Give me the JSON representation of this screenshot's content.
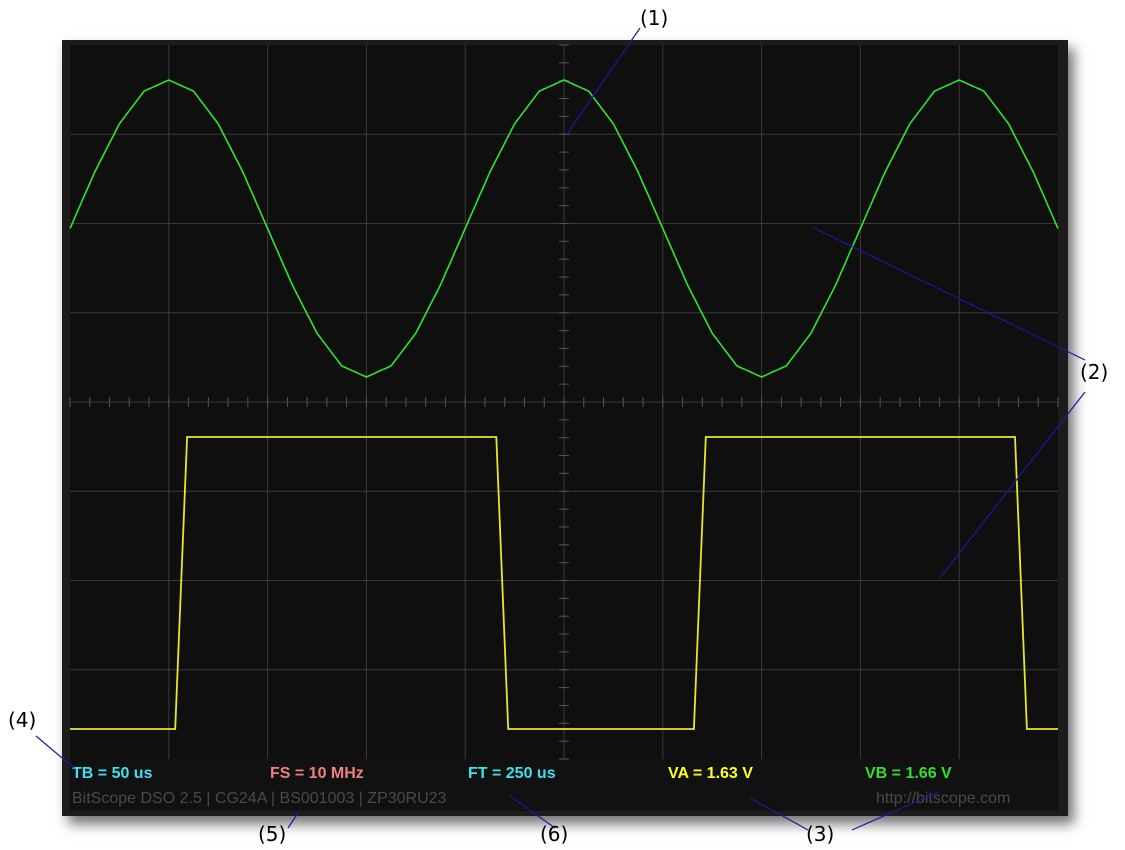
{
  "chart_data": {
    "type": "line",
    "title": "",
    "xlabel": "",
    "ylabel": "",
    "grid": true,
    "divisions": {
      "x": 10,
      "y": 8
    },
    "x": [
      0,
      0.25,
      0.5,
      0.75,
      1,
      1.25,
      1.5,
      1.75,
      2,
      2.25,
      2.5,
      2.75,
      3,
      3.25,
      3.5,
      3.75,
      4,
      4.25,
      4.5,
      4.75,
      5,
      5.25,
      5.5,
      5.75,
      6,
      6.25,
      6.5,
      6.75,
      7,
      7.25,
      7.5,
      7.75,
      8,
      8.25,
      8.5,
      8.75,
      9,
      9.25,
      9.5,
      9.75,
      10
    ],
    "series": [
      {
        "name": "VB",
        "color": "#2ee52e",
        "values": [
          2.0,
          2.76,
          3.41,
          3.85,
          4.0,
          3.85,
          3.41,
          2.76,
          2.0,
          1.24,
          0.59,
          0.15,
          0.0,
          0.15,
          0.59,
          1.24,
          2.0,
          2.76,
          3.41,
          3.85,
          4.0,
          3.85,
          3.41,
          2.76,
          2.0,
          1.24,
          0.59,
          0.15,
          0.0,
          0.15,
          0.59,
          1.24,
          2.0,
          2.76,
          3.41,
          3.85,
          4.0,
          3.85,
          3.41,
          2.76,
          2.0
        ]
      },
      {
        "name": "VA",
        "color": "#e6e62e",
        "values": [
          0,
          0,
          0,
          0,
          0,
          3.25,
          3.25,
          3.25,
          3.25,
          3.25,
          3.25,
          3.25,
          3.25,
          3.25,
          3.25,
          3.25,
          3.25,
          3.25,
          0,
          0,
          0,
          0,
          0,
          0,
          0,
          0,
          3.25,
          3.25,
          3.25,
          3.25,
          3.25,
          3.25,
          3.25,
          3.25,
          3.25,
          3.25,
          3.25,
          3.25,
          3.25,
          0,
          0
        ]
      }
    ]
  },
  "readouts": {
    "tb": {
      "text": "TB = 50 us",
      "color": "#40e0f0"
    },
    "fs": {
      "text": "FS = 10 MHz",
      "color": "#f08080"
    },
    "ft": {
      "text": "FT = 250 us",
      "color": "#40e0f0"
    },
    "va": {
      "text": "VA = 1.63 V",
      "color": "#ffff20"
    },
    "vb": {
      "text": "VB = 1.66 V",
      "color": "#30e030"
    }
  },
  "footer": {
    "left": "BitScope DSO 2.5 | CG24A | BS001003 | ZP30RU23",
    "right": "http://bitscope.com"
  },
  "callouts": {
    "c1": "(1)",
    "c2": "(2)",
    "c3": "(3)",
    "c4": "(4)",
    "c5": "(5)",
    "c6": "(6)"
  },
  "colors": {
    "callout_line": "#1a1aa0",
    "grid": "#3a3a3a",
    "screen": "#0f0f0f"
  }
}
